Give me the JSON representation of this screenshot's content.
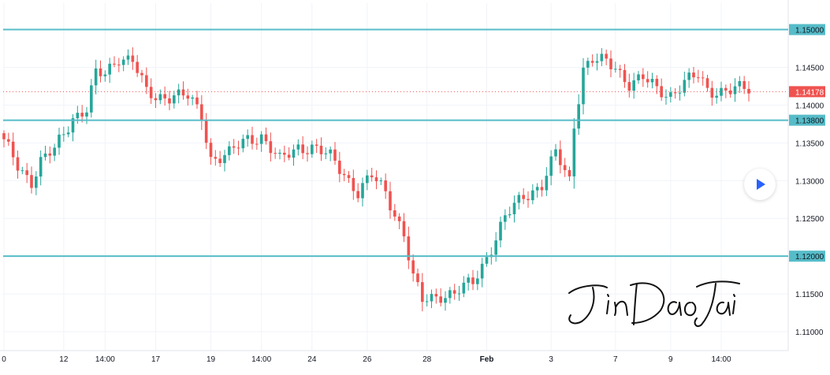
{
  "chart_data": {
    "type": "candlestick",
    "instrument_note": "EUR/USD-style price chart",
    "y_axis": {
      "ticks": [
        "1.15000",
        "1.14500",
        "1.14000",
        "1.13500",
        "1.13000",
        "1.12500",
        "1.12000",
        "1.11500",
        "1.11000"
      ],
      "tick_values": [
        1.15,
        1.145,
        1.14,
        1.135,
        1.13,
        1.125,
        1.12,
        1.115,
        1.11
      ],
      "range": [
        1.1075,
        1.1535
      ]
    },
    "x_axis": {
      "tick_labels": [
        "0",
        "12",
        "14:00",
        "17",
        "19",
        "14:00",
        "24",
        "26",
        "28",
        "Feb",
        "3",
        "7",
        "9",
        "14:00"
      ],
      "tick_bar_index": [
        0,
        13,
        22,
        33,
        45,
        56,
        67,
        79,
        92,
        105,
        119,
        133,
        145,
        156
      ],
      "bold_labels": [
        "Feb"
      ],
      "bar_count": 163
    },
    "current_price": {
      "label": "1.14178",
      "value": 1.14178,
      "color": "#ef5350"
    },
    "horizontal_levels": [
      {
        "label": "1.15000",
        "value": 1.15,
        "color": "#56bcc8"
      },
      {
        "label": "1.13800",
        "value": 1.138,
        "color": "#56bcc8"
      },
      {
        "label": "1.12000",
        "value": 1.12,
        "color": "#56bcc8"
      }
    ],
    "colors": {
      "up": "#26a69a",
      "down": "#ef5350",
      "grid": "#f0f3fa",
      "axis_text": "#131722"
    },
    "grid": true,
    "anchors": [
      [
        0,
        1.135
      ],
      [
        3,
        1.132
      ],
      [
        6,
        1.13
      ],
      [
        8,
        1.1325
      ],
      [
        11,
        1.134
      ],
      [
        15,
        1.1385
      ],
      [
        18,
        1.1395
      ],
      [
        20,
        1.144
      ],
      [
        22,
        1.144
      ],
      [
        25,
        1.1465
      ],
      [
        28,
        1.146
      ],
      [
        31,
        1.1415
      ],
      [
        33,
        1.141
      ],
      [
        37,
        1.1415
      ],
      [
        40,
        1.141
      ],
      [
        43,
        1.1385
      ],
      [
        45,
        1.133
      ],
      [
        49,
        1.1335
      ],
      [
        53,
        1.1355
      ],
      [
        56,
        1.136
      ],
      [
        60,
        1.1325
      ],
      [
        64,
        1.1345
      ],
      [
        67,
        1.1345
      ],
      [
        71,
        1.133
      ],
      [
        74,
        1.131
      ],
      [
        77,
        1.1285
      ],
      [
        80,
        1.1305
      ],
      [
        83,
        1.1285
      ],
      [
        87,
        1.123
      ],
      [
        89,
        1.117
      ],
      [
        91,
        1.114
      ],
      [
        95,
        1.115
      ],
      [
        98,
        1.115
      ],
      [
        102,
        1.1165
      ],
      [
        105,
        1.12
      ],
      [
        109,
        1.125
      ],
      [
        113,
        1.128
      ],
      [
        117,
        1.1295
      ],
      [
        120,
        1.1335
      ],
      [
        123,
        1.13
      ],
      [
        124,
        1.1375
      ],
      [
        126,
        1.145
      ],
      [
        128,
        1.146
      ],
      [
        131,
        1.1455
      ],
      [
        133,
        1.145
      ],
      [
        136,
        1.143
      ],
      [
        139,
        1.1435
      ],
      [
        142,
        1.142
      ],
      [
        145,
        1.1415
      ],
      [
        148,
        1.143
      ],
      [
        151,
        1.1438
      ],
      [
        153,
        1.142
      ]
    ]
  },
  "watermark": {
    "text": "JinDaoTai",
    "kind": "handwritten signature"
  }
}
